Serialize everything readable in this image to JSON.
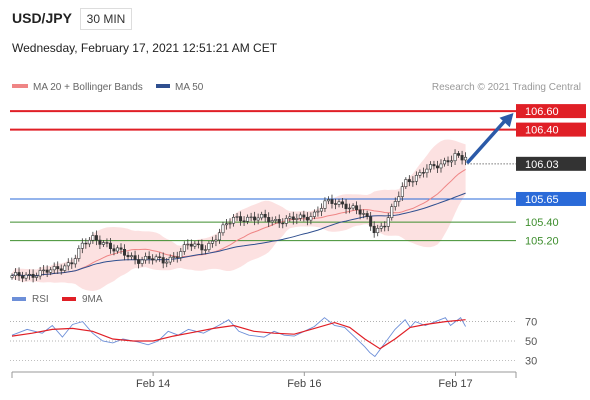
{
  "header": {
    "symbol": "USD/JPY",
    "timeframe": "30 MIN",
    "datetime": "Wednesday, February 17, 2021 12:51:21 AM CET"
  },
  "legend": {
    "ma20_label": "MA 20 + Bollinger Bands",
    "ma50_label": "MA 50",
    "credit": "Research © 2021 Trading Central",
    "rsi_label": "RSI",
    "ma9_label": "9MA"
  },
  "colors": {
    "resistance": "#e01f26",
    "support": "#3e8e2e",
    "pivot": "#2a6ad8",
    "ma50": "#2f4f8f",
    "ma20": "#ef8585",
    "bb_fill": "#fbd7d7",
    "candle": "#333333",
    "rsi": "#6d8fd8",
    "arrow": "#2b5aa8",
    "current_bg": "#333333"
  },
  "chart_data": [
    {
      "type": "candlestick",
      "ylim": [
        104.72,
        106.72
      ],
      "x_range": [
        0,
        100
      ],
      "x_ticks": [
        {
          "x": 28,
          "label": "Feb 14"
        },
        {
          "x": 58,
          "label": "Feb 16"
        },
        {
          "x": 88,
          "label": "Feb 17"
        }
      ],
      "levels": [
        {
          "value": 106.6,
          "label": "106.60",
          "kind": "resistance"
        },
        {
          "value": 106.4,
          "label": "106.40",
          "kind": "resistance"
        },
        {
          "value": 105.65,
          "label": "105.65",
          "kind": "pivot"
        },
        {
          "value": 105.4,
          "label": "105.40",
          "kind": "support"
        },
        {
          "value": 105.2,
          "label": "105.20",
          "kind": "support"
        }
      ],
      "current_price": {
        "value": 106.03,
        "label": "106.03"
      },
      "close_anchors": [
        [
          0,
          104.8
        ],
        [
          4,
          104.84
        ],
        [
          8,
          104.87
        ],
        [
          12,
          104.98
        ],
        [
          14,
          105.14
        ],
        [
          16,
          105.23
        ],
        [
          18,
          105.2
        ],
        [
          20,
          105.1
        ],
        [
          23,
          105.04
        ],
        [
          25,
          105.0
        ],
        [
          27,
          105.0
        ],
        [
          30,
          104.98
        ],
        [
          33,
          105.06
        ],
        [
          35,
          105.15
        ],
        [
          38,
          105.13
        ],
        [
          40,
          105.2
        ],
        [
          42,
          105.33
        ],
        [
          44,
          105.45
        ],
        [
          46,
          105.45
        ],
        [
          48,
          105.43
        ],
        [
          50,
          105.44
        ],
        [
          53,
          105.42
        ],
        [
          55,
          105.42
        ],
        [
          58,
          105.45
        ],
        [
          60,
          105.5
        ],
        [
          62,
          105.6
        ],
        [
          64,
          105.6
        ],
        [
          66,
          105.6
        ],
        [
          68,
          105.55
        ],
        [
          70,
          105.45
        ],
        [
          72,
          105.3
        ],
        [
          74,
          105.4
        ],
        [
          76,
          105.6
        ],
        [
          78,
          105.82
        ],
        [
          80,
          105.9
        ],
        [
          82,
          105.98
        ],
        [
          84,
          105.98
        ],
        [
          86,
          106.05
        ],
        [
          88,
          106.15
        ],
        [
          89,
          106.08
        ],
        [
          90,
          106.1
        ]
      ],
      "arrow": {
        "from": [
          90.5,
          106.05
        ],
        "to": [
          99.5,
          106.58
        ]
      }
    },
    {
      "type": "line",
      "ylim": [
        20,
        82
      ],
      "y_ticks": [
        70,
        50,
        30
      ],
      "series": [
        {
          "name": "RSI",
          "values": [
            [
              0,
              56
            ],
            [
              3,
              62
            ],
            [
              6,
              58
            ],
            [
              8,
              66
            ],
            [
              10,
              54
            ],
            [
              12,
              67
            ],
            [
              14,
              70
            ],
            [
              16,
              58
            ],
            [
              18,
              50
            ],
            [
              20,
              48
            ],
            [
              22,
              52
            ],
            [
              25,
              49
            ],
            [
              27,
              46
            ],
            [
              29,
              50
            ],
            [
              31,
              60
            ],
            [
              33,
              56
            ],
            [
              35,
              62
            ],
            [
              38,
              58
            ],
            [
              41,
              66
            ],
            [
              43,
              72
            ],
            [
              45,
              60
            ],
            [
              47,
              56
            ],
            [
              50,
              54
            ],
            [
              52,
              60
            ],
            [
              54,
              56
            ],
            [
              56,
              55
            ],
            [
              58,
              60
            ],
            [
              60,
              65
            ],
            [
              62,
              74
            ],
            [
              64,
              66
            ],
            [
              66,
              64
            ],
            [
              68,
              54
            ],
            [
              70,
              44
            ],
            [
              71,
              38
            ],
            [
              72,
              34
            ],
            [
              74,
              48
            ],
            [
              76,
              62
            ],
            [
              78,
              72
            ],
            [
              79,
              64
            ],
            [
              80,
              70
            ],
            [
              82,
              66
            ],
            [
              84,
              70
            ],
            [
              86,
              74
            ],
            [
              87,
              66
            ],
            [
              88,
              70
            ],
            [
              89,
              74
            ],
            [
              90,
              65
            ]
          ]
        },
        {
          "name": "9MA",
          "values": [
            [
              0,
              55
            ],
            [
              4,
              58
            ],
            [
              8,
              62
            ],
            [
              12,
              63
            ],
            [
              16,
              60
            ],
            [
              20,
              52
            ],
            [
              24,
              50
            ],
            [
              28,
              50
            ],
            [
              32,
              55
            ],
            [
              36,
              59
            ],
            [
              40,
              63
            ],
            [
              44,
              66
            ],
            [
              48,
              60
            ],
            [
              52,
              58
            ],
            [
              56,
              57
            ],
            [
              60,
              63
            ],
            [
              64,
              69
            ],
            [
              67,
              64
            ],
            [
              70,
              52
            ],
            [
              73,
              42
            ],
            [
              76,
              52
            ],
            [
              79,
              64
            ],
            [
              82,
              67
            ],
            [
              86,
              70
            ],
            [
              90,
              72
            ]
          ]
        }
      ]
    }
  ]
}
